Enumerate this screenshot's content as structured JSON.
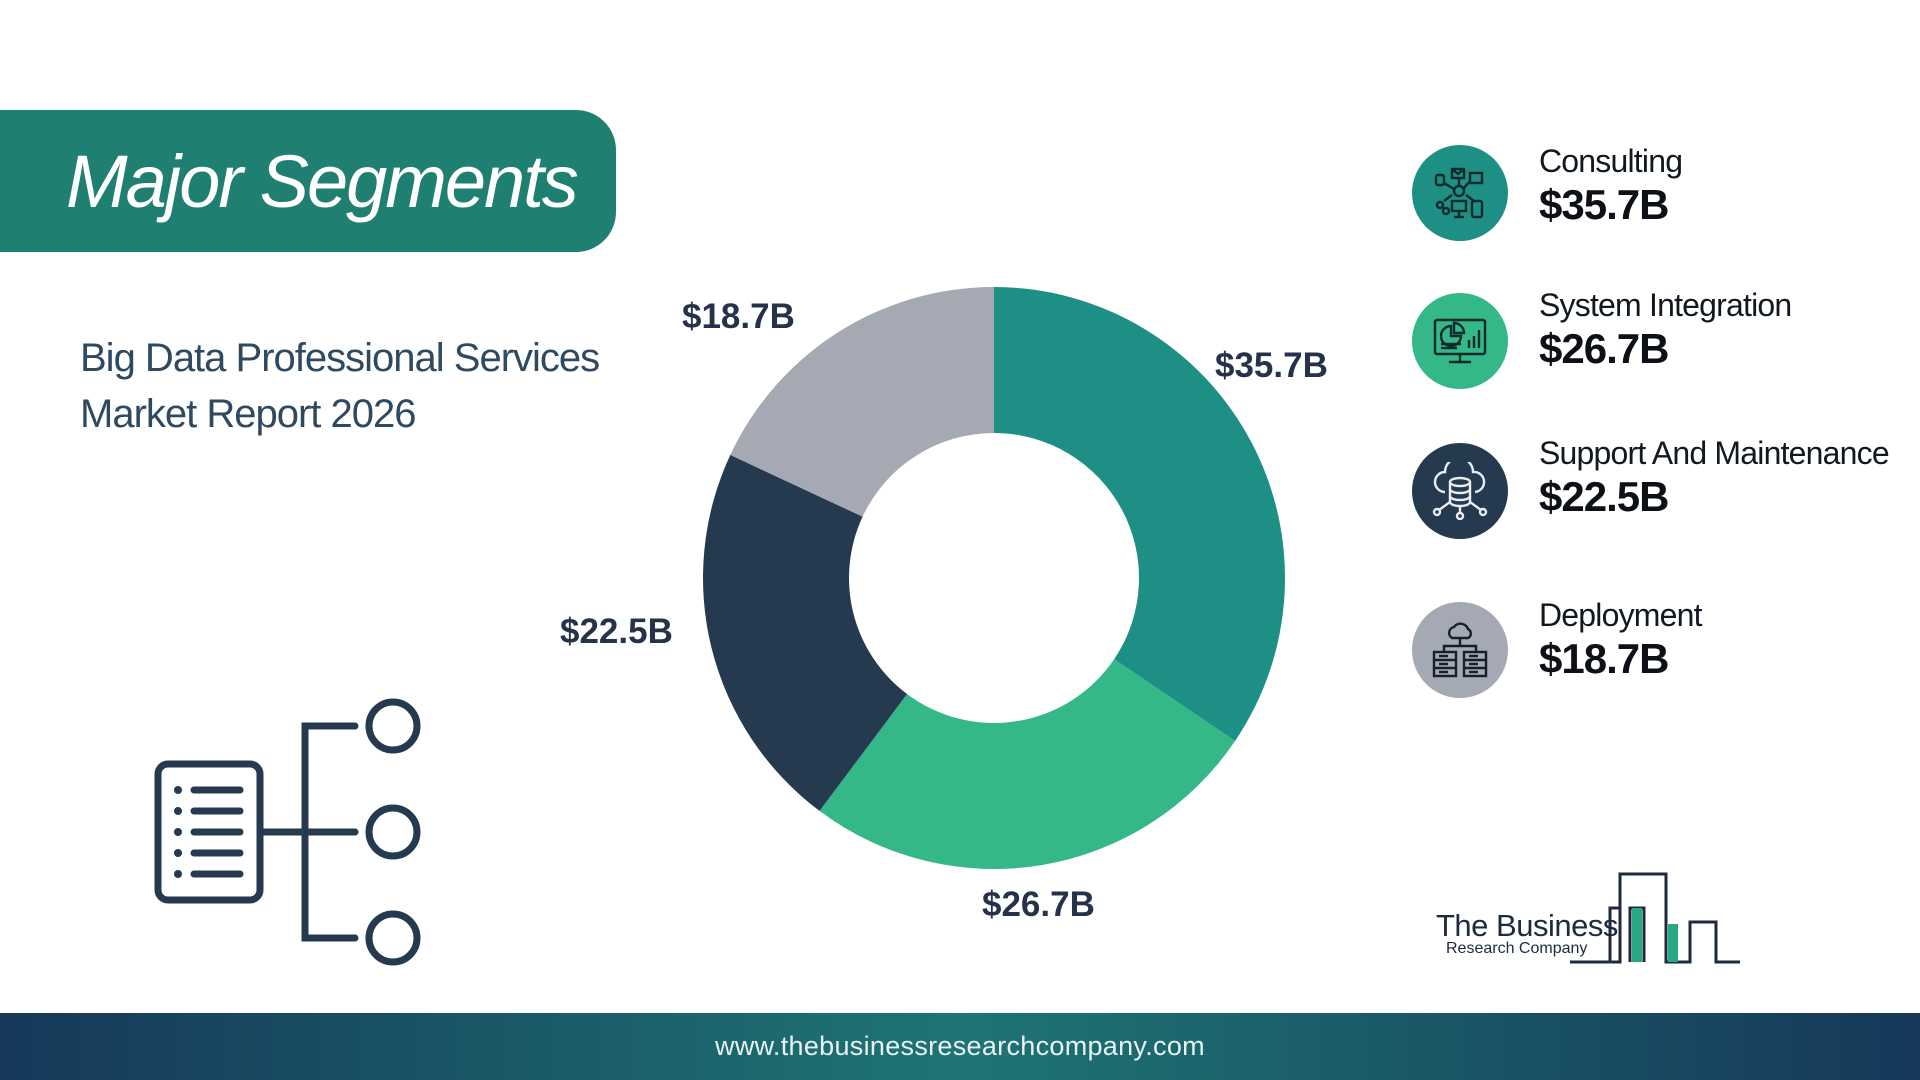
{
  "header": {
    "title": "Major Segments"
  },
  "subtitle": {
    "line1": "Big Data Professional Services",
    "line2": "Market Report 2026"
  },
  "chart_data": {
    "type": "pie",
    "donut": true,
    "categories": [
      "Consulting",
      "System Integration",
      "Support And Maintenance",
      "Deployment"
    ],
    "values": [
      35.7,
      26.7,
      22.5,
      18.7
    ],
    "labels": [
      "$35.7B",
      "$26.7B",
      "$22.5B",
      "$18.7B"
    ],
    "colors": [
      "#1d8f85",
      "#35b888",
      "#253a4f",
      "#a4a9b4"
    ],
    "legend": "right"
  },
  "legend": {
    "items": [
      {
        "name": "Consulting",
        "value": "$35.7B",
        "icon": "network-devices-icon",
        "color": "#1d8f85"
      },
      {
        "name": "System Integration",
        "value": "$26.7B",
        "icon": "monitor-analytics-icon",
        "color": "#35b888"
      },
      {
        "name": "Support And Maintenance",
        "value": "$22.5B",
        "icon": "cloud-database-icon",
        "color": "#253a4f"
      },
      {
        "name": "Deployment",
        "value": "$18.7B",
        "icon": "cloud-servers-icon",
        "color": "#a4a9b4"
      }
    ]
  },
  "logo": {
    "line1": "The Business",
    "line2": "Research Company"
  },
  "footer": {
    "url": "www.thebusinessresearchcompany.com"
  }
}
